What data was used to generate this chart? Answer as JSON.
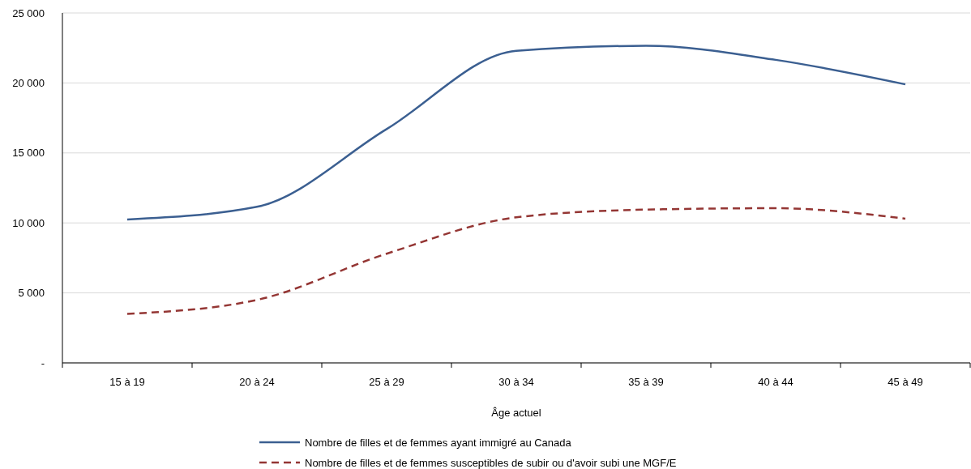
{
  "chart_data": {
    "type": "line",
    "xlabel": "Âge actuel",
    "categories": [
      "15 à 19",
      "20 à 24",
      "25 à 29",
      "30 à 34",
      "35 à 39",
      "40 à 44",
      "45 à 49"
    ],
    "series": [
      {
        "name": "Nombre de filles et de femmes ayant immigré au Canada",
        "color": "#3b5f91",
        "line_style": "solid",
        "values": [
          10250,
          11150,
          16700,
          22300,
          22650,
          21650,
          19900
        ]
      },
      {
        "name": "Nombre de filles et de femmes susceptibles de subir ou d'avoir subi une MGF/E",
        "color": "#943634",
        "line_style": "dashed",
        "values": [
          3500,
          4500,
          7800,
          10400,
          10950,
          11050,
          10300
        ]
      }
    ],
    "ylim": [
      0,
      25000
    ],
    "yticks": [
      {
        "value": 0,
        "label": "-"
      },
      {
        "value": 5000,
        "label": "5 000"
      },
      {
        "value": 10000,
        "label": "10 000"
      },
      {
        "value": 15000,
        "label": "15 000"
      },
      {
        "value": 20000,
        "label": "20 000"
      },
      {
        "value": 25000,
        "label": "25 000"
      }
    ],
    "grid": "y",
    "legend": "bottom",
    "marker": "none"
  }
}
